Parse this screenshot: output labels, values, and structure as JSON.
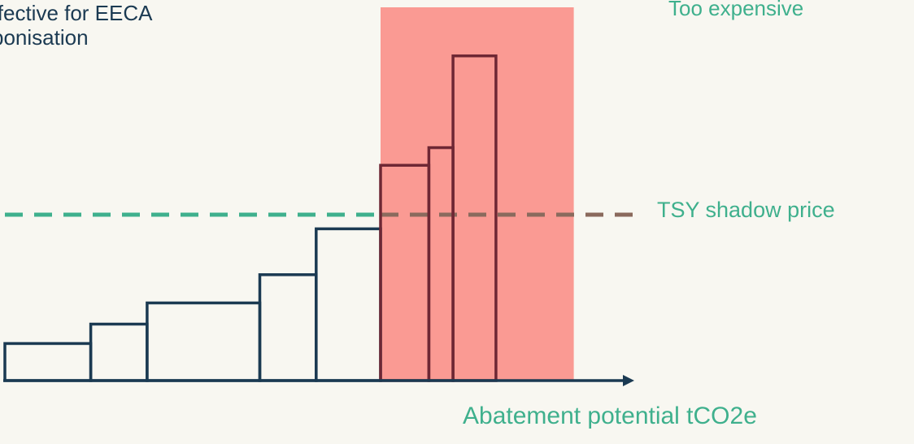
{
  "chart_data": {
    "type": "bar",
    "subtype": "marginal-abatement-cost-curve",
    "title": "",
    "xlabel": "Abatement potential tCO2e",
    "ylabel": "",
    "ylim": [
      0,
      10
    ],
    "x_range": [
      0,
      11.5
    ],
    "grid": false,
    "bars": [
      {
        "start": 0.0,
        "width": 1.6,
        "value": 1.05
      },
      {
        "start": 1.6,
        "width": 1.05,
        "value": 1.6
      },
      {
        "start": 2.65,
        "width": 2.1,
        "value": 2.2
      },
      {
        "start": 4.75,
        "width": 1.05,
        "value": 3.0
      },
      {
        "start": 5.8,
        "width": 1.2,
        "value": 4.3
      },
      {
        "start": 7.0,
        "width": 0.9,
        "value": 6.1
      },
      {
        "start": 7.9,
        "width": 0.45,
        "value": 6.6
      },
      {
        "start": 8.35,
        "width": 0.8,
        "value": 9.2
      }
    ],
    "reference_line": {
      "label": "TSY shadow price",
      "value": 4.7,
      "style": "dashed"
    },
    "zones": [
      {
        "label": "Too expensive",
        "from": 7.0,
        "to": 10.6
      },
      {
        "label": "ffective for EECA\nbonisation",
        "to": 7.0
      }
    ],
    "annotations": {
      "left_note": [
        "ffective for EECA",
        "bonisation"
      ],
      "zone_label": "Too expensive",
      "price_label": "TSY shadow price"
    },
    "colors": {
      "background": "#f8f7f1",
      "bar_stroke": "#1b3a52",
      "bar_stroke_in_zone": "#6e2734",
      "zone_fill": "#fa9a93",
      "price_line": "#3fb08d",
      "price_line_in_zone": "#8a6a5d",
      "accent_text": "#3fb08d",
      "note_text": "#1b3a52"
    }
  }
}
